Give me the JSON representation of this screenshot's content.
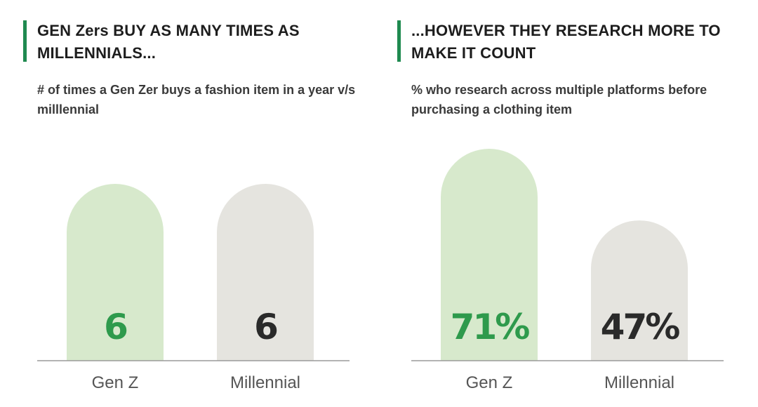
{
  "colors": {
    "accent": "#1f8a50",
    "genz_bar": "#d7e9cc",
    "millennial_bar": "#e5e4df",
    "genz_text": "#2e9a4c",
    "millennial_text": "#2a2a2a",
    "baseline": "#9a9a9a"
  },
  "chart_data": [
    {
      "type": "bar",
      "title": "GEN Zers BUY AS MANY TIMES AS MILLENNIALS...",
      "subtitle": "# of times a Gen Zer buys a fashion item in a year v/s milllennial",
      "categories": [
        "Gen Z",
        "Millennial"
      ],
      "values": [
        6,
        6
      ],
      "data_labels": [
        "6",
        "6"
      ],
      "ylim": [
        0,
        10
      ],
      "grid": false,
      "axis_labels_visible": false
    },
    {
      "type": "bar",
      "title": "...HOWEVER THEY RESEARCH MORE TO MAKE IT COUNT",
      "subtitle": "% who research across multiple  platforms before purchasing a clothing item",
      "categories": [
        "Gen Z",
        "Millennial"
      ],
      "values": [
        71,
        47
      ],
      "data_labels": [
        "71%",
        "47%"
      ],
      "ylim": [
        0,
        100
      ],
      "grid": false,
      "axis_labels_visible": false
    }
  ]
}
